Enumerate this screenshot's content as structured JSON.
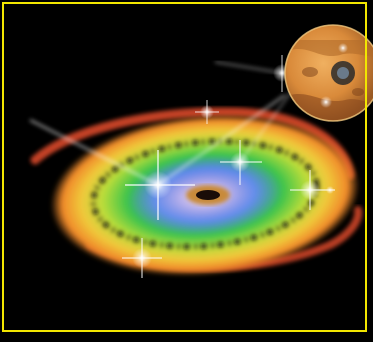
{
  "image": {
    "subject": "protoplanetary-disk-illustration",
    "colors": {
      "frame_border": "#f2e600",
      "background": "#000000",
      "disk_outer_red": "#d94a2a",
      "disk_orange": "#f08a2a",
      "disk_yellow": "#e8dc3a",
      "disk_green": "#3cc44a",
      "disk_inner_blue": "#4a7ce8",
      "disk_center_purple": "#8a6cc8",
      "inset_planet_surface": "#d98a3a"
    }
  }
}
